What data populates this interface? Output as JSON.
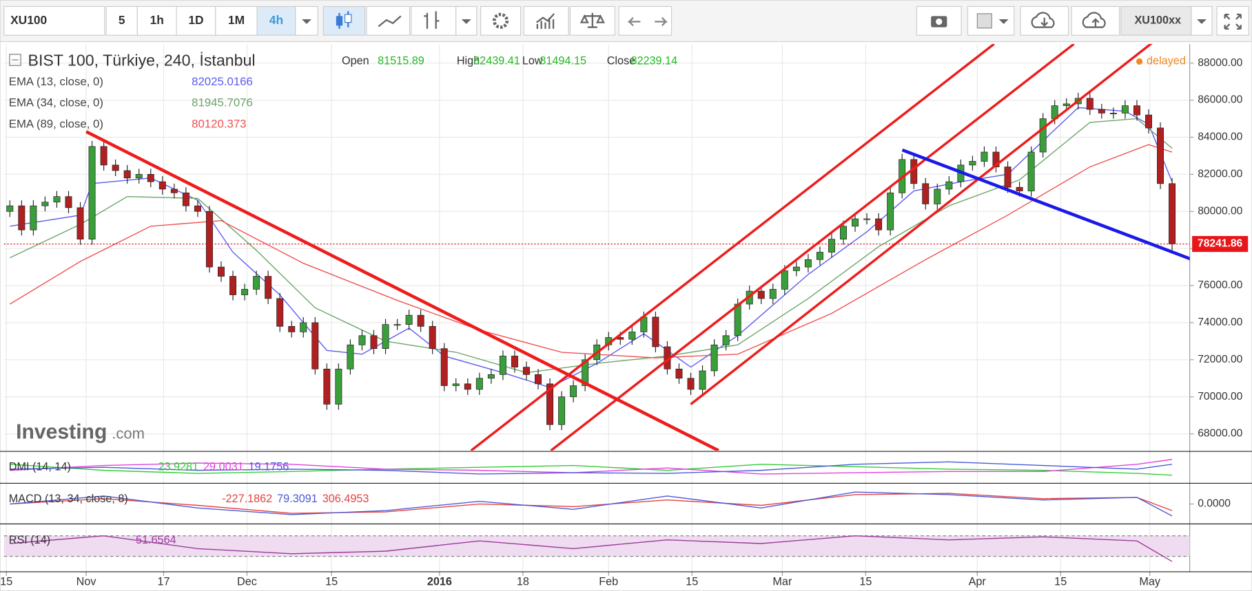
{
  "toolbar": {
    "symbol": "XU100",
    "intervals": [
      "5",
      "1h",
      "1D",
      "1M",
      "4h"
    ],
    "active_interval": 4,
    "account": "XU100xx"
  },
  "watermark": {
    "brand": "Investing",
    "suffix": ".com"
  },
  "status": "delayed",
  "chart_data": [
    {
      "type": "candlestick",
      "title": "BIST 100, Türkiye, 240, İstanbul",
      "legend": [
        {
          "label": "Open",
          "value": 81515.89
        },
        {
          "label": "High",
          "value": 82439.41
        },
        {
          "label": "Low",
          "value": 81494.15
        },
        {
          "label": "Close",
          "value": 82239.14
        }
      ],
      "up_color": "#3a9e3a",
      "down_color": "#b02020",
      "open": [
        80000,
        80300,
        79000,
        80300,
        80500,
        80800,
        80200,
        78500,
        83500,
        82500,
        82200,
        81800,
        82000,
        81600,
        81200,
        81000,
        80300,
        80000,
        77000,
        76500,
        75500,
        75800,
        76500,
        75300,
        73800,
        73500,
        74000,
        71500,
        69600,
        71500,
        72800,
        73300,
        72600,
        73900,
        73900,
        74400,
        73800,
        72600,
        70600,
        70700,
        70400,
        71000,
        71200,
        72200,
        71600,
        71200,
        70700,
        68500,
        70000,
        70600,
        72000,
        72800,
        73200,
        73100,
        73500,
        74300,
        72700,
        71500,
        71000,
        70400,
        71400,
        72800,
        73300,
        75000,
        75700,
        75300,
        75800,
        76800,
        77000,
        77400,
        77800,
        78500,
        79200,
        79600,
        79600,
        79000,
        81000,
        82800,
        81500,
        80400,
        81200,
        81600,
        82500,
        82700,
        83200,
        82400,
        81300,
        81100,
        83200,
        85000,
        85700,
        85800,
        86100,
        85500,
        85300,
        85300,
        85700,
        85200,
        84500,
        81500
      ],
      "high": [
        80600,
        80600,
        80600,
        80800,
        81100,
        81100,
        80500,
        83800,
        83800,
        82800,
        82500,
        82300,
        82300,
        81900,
        81500,
        81300,
        80600,
        80300,
        77300,
        76800,
        76100,
        76800,
        76800,
        75600,
        74100,
        74300,
        74300,
        71800,
        71800,
        73100,
        73600,
        73600,
        74200,
        74200,
        74700,
        74700,
        74100,
        72900,
        71000,
        71000,
        71300,
        71500,
        72500,
        72500,
        71900,
        71500,
        71000,
        70300,
        70900,
        72300,
        73100,
        73500,
        73500,
        73800,
        74600,
        74600,
        73000,
        71800,
        71300,
        71700,
        73100,
        73600,
        75300,
        76000,
        76000,
        76100,
        77100,
        77300,
        77700,
        78100,
        78800,
        79500,
        79900,
        79900,
        79900,
        81300,
        83100,
        83100,
        81800,
        81500,
        81900,
        82800,
        83000,
        83500,
        83500,
        82700,
        81600,
        83500,
        85300,
        86000,
        86100,
        86400,
        86400,
        85800,
        85600,
        86000,
        86000,
        85500,
        84800,
        81800
      ],
      "low": [
        79700,
        78700,
        78700,
        80000,
        80200,
        79900,
        78200,
        78200,
        82200,
        81900,
        81500,
        81500,
        81300,
        80900,
        80700,
        80000,
        79700,
        76700,
        76200,
        75200,
        75200,
        75500,
        75000,
        73500,
        73200,
        73200,
        71200,
        69300,
        69300,
        71200,
        72500,
        72300,
        72300,
        73600,
        73600,
        73500,
        72300,
        70300,
        70300,
        70100,
        70100,
        70700,
        70900,
        71300,
        70900,
        70400,
        68200,
        68200,
        69700,
        70300,
        71700,
        72500,
        72800,
        72800,
        73200,
        72400,
        71200,
        70700,
        70100,
        70100,
        71100,
        72500,
        73000,
        74700,
        75000,
        75000,
        75500,
        76500,
        76700,
        77100,
        77500,
        78200,
        78900,
        79300,
        78700,
        78700,
        80700,
        81200,
        80100,
        80100,
        80900,
        81300,
        82200,
        82400,
        82100,
        81000,
        80800,
        80800,
        82900,
        84700,
        85400,
        85500,
        85200,
        85000,
        85000,
        85000,
        84900,
        84200,
        81200,
        77900
      ],
      "close": [
        80300,
        79000,
        80300,
        80500,
        80800,
        80200,
        78500,
        83500,
        82500,
        82200,
        81800,
        82000,
        81600,
        81200,
        81000,
        80300,
        80000,
        77000,
        76500,
        75500,
        75800,
        76500,
        75300,
        73800,
        73500,
        74000,
        71500,
        69600,
        71500,
        72800,
        73300,
        72600,
        73900,
        73900,
        74400,
        73800,
        72600,
        70600,
        70700,
        70400,
        71000,
        71200,
        72200,
        71600,
        71200,
        70700,
        68500,
        70000,
        70600,
        72000,
        72800,
        73200,
        73100,
        73500,
        74300,
        72700,
        71500,
        71000,
        70400,
        71400,
        72800,
        73300,
        75000,
        75700,
        75300,
        75800,
        76800,
        77000,
        77400,
        77800,
        78500,
        79200,
        79600,
        79600,
        79000,
        81000,
        82800,
        81500,
        80400,
        81200,
        81600,
        82500,
        82700,
        83200,
        82400,
        81300,
        81100,
        83200,
        85000,
        85700,
        85800,
        86100,
        85500,
        85300,
        85300,
        85700,
        85200,
        84500,
        81500,
        78241.86
      ],
      "series": [
        {
          "name": "EMA (13, close, 0)",
          "last": 82025.0166,
          "color": "#5b5bf0",
          "x": [
            0,
            6,
            7,
            12,
            16,
            19,
            23,
            27,
            30,
            34,
            37,
            42,
            46,
            50,
            54,
            58,
            62,
            68,
            73,
            77,
            81,
            85,
            88,
            91,
            95,
            97,
            99
          ],
          "values": [
            79200,
            79800,
            81500,
            81800,
            80600,
            77800,
            75500,
            72500,
            72300,
            73700,
            72200,
            71300,
            70500,
            71800,
            73400,
            71600,
            73300,
            76600,
            78900,
            81100,
            81600,
            82000,
            83800,
            85600,
            85400,
            84700,
            81600
          ]
        },
        {
          "name": "EMA (34, close, 0)",
          "last": 81945.7076,
          "color": "#6aa56a",
          "x": [
            0,
            6,
            10,
            16,
            21,
            26,
            32,
            38,
            44,
            50,
            56,
            62,
            68,
            74,
            80,
            86,
            92,
            96,
            99
          ],
          "values": [
            77500,
            79300,
            80800,
            80700,
            77900,
            74800,
            73000,
            72400,
            71300,
            71800,
            72200,
            72800,
            75300,
            78100,
            80300,
            81700,
            84800,
            85000,
            83400
          ]
        },
        {
          "name": "EMA (89, close, 0)",
          "last": 80120.373,
          "color": "#f05050",
          "x": [
            0,
            6,
            12,
            18,
            25,
            33,
            40,
            47,
            55,
            62,
            70,
            78,
            85,
            92,
            97,
            99
          ],
          "values": [
            75000,
            77300,
            79200,
            79500,
            77200,
            75200,
            73600,
            72400,
            72100,
            72300,
            74500,
            77400,
            79800,
            82400,
            83600,
            83200
          ]
        }
      ],
      "last_price": 78241.86,
      "last_price_color": "#e8161b",
      "xlim": [
        -0.5,
        100.5
      ],
      "ylim": [
        67100,
        89030
      ],
      "grid": true,
      "yticks": [
        {
          "value": 68000,
          "label": "68000.00"
        },
        {
          "value": 70000,
          "label": "70000.00"
        },
        {
          "value": 72000,
          "label": "72000.00"
        },
        {
          "value": 74000,
          "label": "74000.00"
        },
        {
          "value": 76000,
          "label": "76000.00"
        },
        {
          "value": 78000,
          "label": "78000.00"
        },
        {
          "value": 80000,
          "label": "80000.00"
        },
        {
          "value": 82000,
          "label": "82000.00"
        },
        {
          "value": 84000,
          "label": "84000.00"
        },
        {
          "value": 86000,
          "label": "86000.00"
        },
        {
          "value": 88000,
          "label": "88000.00"
        }
      ],
      "xticks": [
        {
          "value": -0.3,
          "label": "15"
        },
        {
          "value": 6.5,
          "label": "Nov"
        },
        {
          "value": 13.1,
          "label": "17"
        },
        {
          "value": 20.2,
          "label": "Dec"
        },
        {
          "value": 27.4,
          "label": "15"
        },
        {
          "value": 36.6,
          "label": "2016",
          "bold": true
        },
        {
          "value": 43.7,
          "label": "18"
        },
        {
          "value": 51,
          "label": "Feb"
        },
        {
          "value": 58.1,
          "label": "15"
        },
        {
          "value": 65.8,
          "label": "Mar"
        },
        {
          "value": 72.9,
          "label": "15"
        },
        {
          "value": 82.4,
          "label": "Apr"
        },
        {
          "value": 89.5,
          "label": "15"
        },
        {
          "value": 97.1,
          "label": "May"
        }
      ]
    },
    {
      "type": "line",
      "title": "DMI (14, 14)",
      "ylim": [
        0,
        50
      ],
      "x": [
        0,
        8,
        16,
        24,
        32,
        40,
        48,
        56,
        64,
        72,
        80,
        88,
        96,
        99
      ],
      "series": [
        {
          "last": 23.9281,
          "color": "#33cc33",
          "values": [
            30,
            20,
            15,
            18,
            22,
            25,
            28,
            20,
            30,
            26,
            22,
            20,
            15,
            12
          ]
        },
        {
          "last": 29.0031,
          "color": "#e040e0",
          "values": [
            20,
            28,
            32,
            30,
            22,
            20,
            16,
            24,
            14,
            16,
            18,
            18,
            30,
            38
          ]
        },
        {
          "last": 19.1756,
          "color": "#4a5ad8",
          "values": [
            22,
            25,
            20,
            22,
            20,
            14,
            16,
            15,
            20,
            30,
            34,
            28,
            22,
            30
          ]
        }
      ]
    },
    {
      "type": "line",
      "title": "MACD (13, 34, close, 8)",
      "ylim": [
        -1500,
        1500
      ],
      "yticks": [
        {
          "value": 0,
          "label": "0.0000"
        }
      ],
      "x": [
        0,
        8,
        16,
        24,
        32,
        40,
        48,
        56,
        64,
        72,
        80,
        88,
        96,
        99
      ],
      "series": [
        {
          "last": -227.1862,
          "color": "#e84040",
          "values": [
            0,
            400,
            -100,
            -700,
            -600,
            0,
            -200,
            300,
            -100,
            700,
            800,
            400,
            500,
            -500
          ]
        },
        {
          "last": 79.3091,
          "color": "#4a5ad8",
          "values": [
            0,
            600,
            -300,
            -800,
            -500,
            200,
            -400,
            600,
            -300,
            900,
            700,
            300,
            500,
            -900
          ]
        },
        {
          "last": 306.4953,
          "color": "#e84040"
        }
      ]
    },
    {
      "type": "line",
      "title": "RSI (14)",
      "ylim": [
        0,
        90
      ],
      "band": [
        30,
        70
      ],
      "x": [
        0,
        8,
        16,
        24,
        32,
        40,
        48,
        56,
        64,
        72,
        80,
        88,
        96,
        99
      ],
      "series": [
        {
          "last": 51.6564,
          "color": "#9a3a9a",
          "values": [
            55,
            70,
            45,
            35,
            40,
            60,
            45,
            62,
            55,
            70,
            62,
            68,
            60,
            20
          ]
        }
      ]
    }
  ]
}
